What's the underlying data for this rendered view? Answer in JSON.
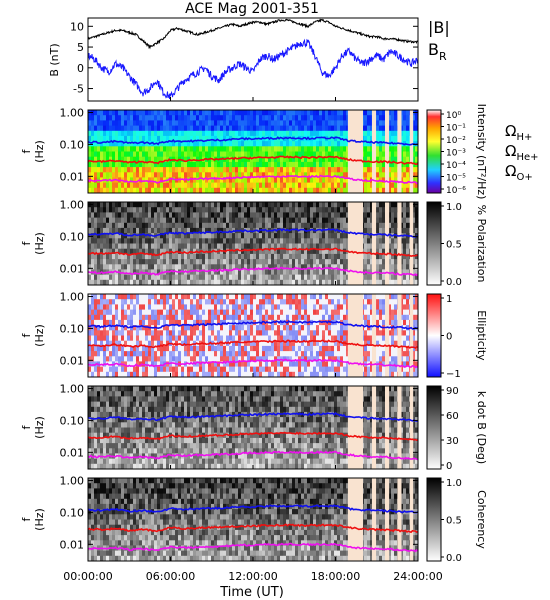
{
  "title": "ACE Mag 2001-351",
  "xlabel": "Time (UT)",
  "colors": {
    "btot": "#000000",
    "br": "#1a1aff",
    "h": "#1010ee",
    "he": "#ee1010",
    "o": "#ee10ee",
    "gap": "#f9e3d0"
  },
  "legend": {
    "b_label": "|B|",
    "br_label": "B",
    "br_sub": "R",
    "h_label": "Ω",
    "h_sub": "H+",
    "he_label": "Ω",
    "he_sub": "He+",
    "o_label": "Ω",
    "o_sub": "O+"
  },
  "chart_data": [
    {
      "type": "line",
      "panel": "B",
      "ylabel": "B (nT)",
      "ylim": [
        -8,
        12
      ],
      "yticks": [
        "10",
        "5",
        "0",
        "-5"
      ],
      "x_hours": [
        0,
        0.5,
        1,
        1.5,
        2,
        2.5,
        3,
        3.5,
        4,
        4.5,
        5,
        5.5,
        6,
        6.5,
        7,
        7.5,
        8,
        8.5,
        9,
        9.5,
        10,
        10.5,
        11,
        11.5,
        12,
        12.5,
        13,
        13.5,
        14,
        14.5,
        15,
        15.5,
        16,
        16.5,
        17,
        17.5,
        18,
        18.5,
        19,
        19.5,
        20,
        20.5,
        21,
        21.5,
        22,
        22.5,
        23,
        23.5,
        24
      ],
      "series": [
        {
          "name": "|B|",
          "values": [
            7,
            7.5,
            8,
            8.5,
            9,
            9,
            8.5,
            8,
            6.5,
            5,
            6,
            7,
            9,
            9.5,
            9,
            8.5,
            8,
            8.5,
            9,
            9.5,
            10,
            10.5,
            10,
            10.5,
            11,
            11,
            10.5,
            11,
            11.5,
            11.5,
            11,
            10.5,
            10,
            11,
            11.5,
            11,
            10,
            9.5,
            9,
            8.5,
            8,
            7.5,
            7.5,
            7,
            7,
            6.8,
            6.5,
            6.3,
            6.2
          ]
        },
        {
          "name": "B_R",
          "values": [
            3,
            2,
            0,
            -1,
            1,
            0,
            -2,
            -4,
            -6,
            -5,
            -3,
            -6,
            -7,
            -5,
            -3,
            -2,
            -1,
            0,
            -2,
            -3,
            -1,
            0,
            1,
            0,
            -1,
            2,
            3,
            2,
            3,
            4,
            5,
            6,
            6,
            3,
            -1,
            -2,
            0,
            3,
            4,
            2,
            1,
            2,
            3,
            2,
            4,
            3,
            2,
            1,
            2
          ]
        }
      ]
    },
    {
      "type": "heatmap",
      "panel": "Intensity",
      "ylabel": "f (Hz)",
      "yscale": "log",
      "ylim": [
        0.003,
        1.2
      ],
      "yticks": [
        "1.00",
        "0.10",
        "0.01"
      ],
      "colorbar": {
        "label": "Intensity (nT²/Hz)",
        "ticks": [
          "10⁰",
          "10⁻¹",
          "10⁻²",
          "10⁻³",
          "10⁻⁴",
          "10⁻⁵",
          "10⁻⁶"
        ]
      }
    },
    {
      "type": "heatmap",
      "panel": "Polarization",
      "ylabel": "f (Hz)",
      "yscale": "log",
      "ylim": [
        0.003,
        1.2
      ],
      "yticks": [
        "1.00",
        "0.10",
        "0.01"
      ],
      "colorbar": {
        "label": "% Polarization",
        "ticks": [
          "1.0",
          "0.5",
          "0.0"
        ]
      }
    },
    {
      "type": "heatmap",
      "panel": "Ellipticity",
      "ylabel": "f (Hz)",
      "yscale": "log",
      "ylim": [
        0.003,
        1.2
      ],
      "yticks": [
        "1.00",
        "0.10",
        "0.01"
      ],
      "colorbar": {
        "label": "Ellipticity",
        "ticks": [
          "1",
          "0",
          "−1"
        ]
      }
    },
    {
      "type": "heatmap",
      "panel": "k dot B",
      "ylabel": "f (Hz)",
      "yscale": "log",
      "ylim": [
        0.003,
        1.2
      ],
      "yticks": [
        "1.00",
        "0.10",
        "0.01"
      ],
      "colorbar": {
        "label": "k dot B (Deg)",
        "ticks": [
          "90",
          "60",
          "30",
          "0"
        ]
      }
    },
    {
      "type": "heatmap",
      "panel": "Coherency",
      "ylabel": "f (Hz)",
      "yscale": "log",
      "ylim": [
        0.003,
        1.2
      ],
      "yticks": [
        "1.00",
        "0.10",
        "0.01"
      ],
      "colorbar": {
        "label": "Coherency",
        "ticks": [
          "1.0",
          "0.5",
          "0.0"
        ]
      }
    }
  ],
  "gyro": {
    "x_hours": [
      0,
      1,
      2,
      3,
      4,
      5,
      6,
      7,
      8,
      9,
      10,
      11,
      12,
      13,
      14,
      15,
      16,
      17,
      18,
      19,
      20,
      21,
      22,
      23,
      24
    ],
    "H+": [
      0.12,
      0.115,
      0.125,
      0.11,
      0.115,
      0.105,
      0.13,
      0.125,
      0.13,
      0.135,
      0.14,
      0.15,
      0.15,
      0.155,
      0.16,
      0.16,
      0.155,
      0.16,
      0.16,
      0.13,
      0.12,
      0.115,
      0.11,
      0.105,
      0.1
    ],
    "He+": [
      0.03,
      0.029,
      0.031,
      0.027,
      0.029,
      0.026,
      0.033,
      0.031,
      0.033,
      0.034,
      0.035,
      0.037,
      0.038,
      0.039,
      0.04,
      0.04,
      0.039,
      0.04,
      0.04,
      0.033,
      0.03,
      0.029,
      0.028,
      0.026,
      0.025
    ]
  },
  "gaps": [
    [
      18.9,
      20.0
    ],
    [
      20.65,
      20.95
    ],
    [
      21.6,
      21.9
    ],
    [
      22.5,
      22.8
    ],
    [
      23.4,
      23.65
    ]
  ],
  "xticks": [
    "00:00:00",
    "06:00:00",
    "12:00:00",
    "18:00:00",
    "24:00:00"
  ],
  "xtick_hours": [
    0,
    6,
    12,
    18,
    24
  ]
}
